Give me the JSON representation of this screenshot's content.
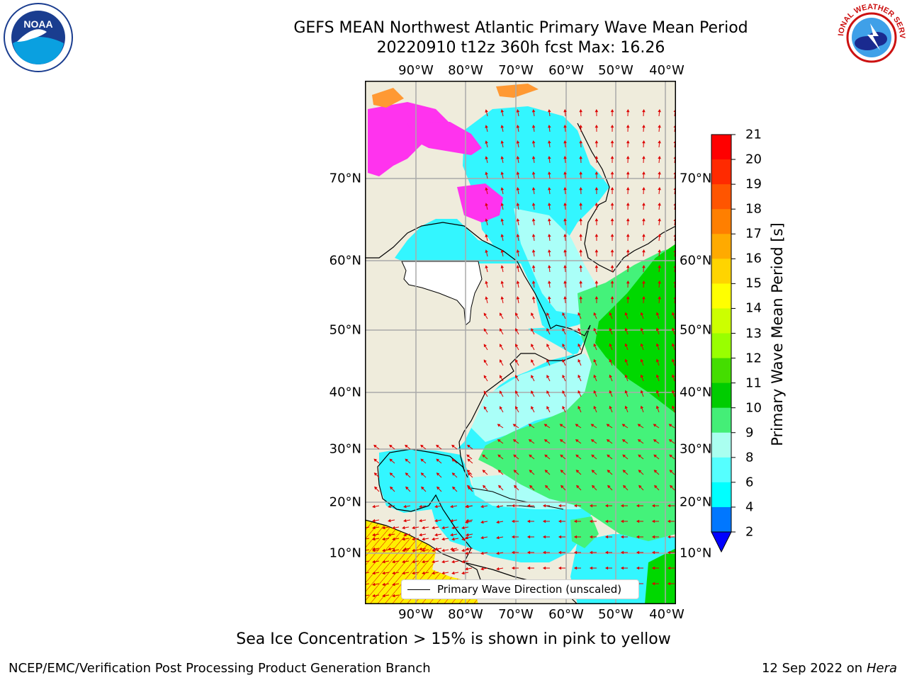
{
  "title": {
    "line1": "GEFS MEAN Northwest Atlantic Primary Wave Mean Period",
    "line2": "20220910 t12z 360h fcst   Max: 16.26"
  },
  "map": {
    "lon_labels": [
      "90°W",
      "80°W",
      "70°W",
      "60°W",
      "50°W",
      "40°W"
    ],
    "lat_labels": [
      "70°N",
      "60°N",
      "50°N",
      "40°N",
      "30°N",
      "20°N",
      "10°N"
    ],
    "land_color": "#efecdc",
    "ocean_colors": {
      "swell_4_6": "#00ffff",
      "swell_6_8": "#44ffff",
      "swell_8_9": "#aafff8",
      "swell_9_10": "#44f27a",
      "swell_10_11": "#00d800",
      "tropical_15_16": "#ffee00",
      "ice_pink": "#ff33ee",
      "ice_orange": "#ff9933"
    },
    "arrow_color": "#dd0000"
  },
  "legend": {
    "label": "Primary Wave Direction (unscaled)"
  },
  "colorbar": {
    "title": "Primary Wave Mean Period [s]",
    "levels": [
      "21",
      "20",
      "19",
      "18",
      "17",
      "16",
      "15",
      "14",
      "13",
      "12",
      "11",
      "10",
      "9",
      "8",
      "6",
      "4",
      "2"
    ],
    "colors": [
      "#ff0000",
      "#ff2a00",
      "#ff5500",
      "#ff7f00",
      "#ffaa00",
      "#ffd400",
      "#ffff00",
      "#ccff00",
      "#99ff00",
      "#44dd00",
      "#00cc00",
      "#44ee77",
      "#aafff0",
      "#55ffff",
      "#00ffff",
      "#0077ff",
      "#0000ff"
    ]
  },
  "footnote": "Sea Ice Concentration > 15% is shown in pink to yellow",
  "credit_left": "NCEP/EMC/Verification Post Processing Product Generation Branch",
  "credit_right": {
    "date": "12 Sep 2022 on",
    "host": "Hera"
  },
  "logos": {
    "noaa_text": "NOAA",
    "nws_text": "NATIONAL WEATHER SERVICE"
  }
}
